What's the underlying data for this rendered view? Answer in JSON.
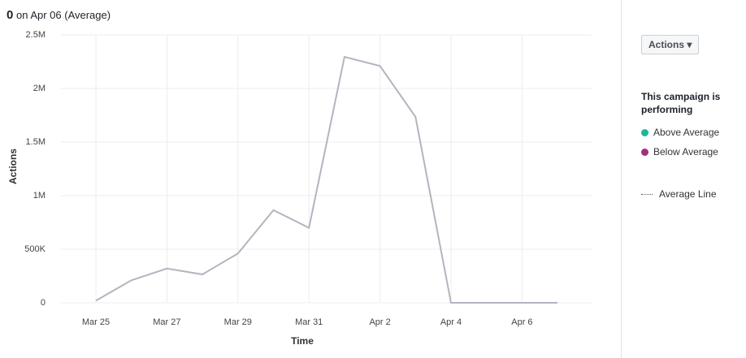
{
  "header": {
    "value": "0",
    "text": "on Apr 06 (Average)"
  },
  "chart_data": {
    "type": "line",
    "categories": [
      "Mar 25",
      null,
      "Mar 27",
      null,
      "Mar 29",
      null,
      "Mar 31",
      null,
      "Apr 2",
      null,
      "Apr 4",
      null,
      "Apr 6",
      null
    ],
    "values": [
      20000,
      210000,
      320000,
      265000,
      460000,
      865000,
      700000,
      2295000,
      2210000,
      1735000,
      0,
      0,
      0,
      0
    ],
    "color": "#b4b4c0",
    "ylim": [
      0,
      2500000
    ],
    "yticks": [
      0,
      {
        "value": 500000,
        "label": "500K"
      },
      {
        "value": 1000000,
        "label": "1M"
      },
      {
        "value": 1500000,
        "label": "1.5M"
      },
      {
        "value": 2000000,
        "label": "2M"
      },
      {
        "value": 2500000,
        "label": "2.5M"
      }
    ],
    "y_label": "Actions",
    "x_label": "Time",
    "grid": true
  },
  "side": {
    "button": "Actions",
    "legend_title": "This campaign is performing",
    "items": [
      {
        "name": "Above Average",
        "color": "#1bb99a"
      },
      {
        "name": "Below Average",
        "color": "#a0307a"
      }
    ],
    "average_line": "Average Line"
  }
}
